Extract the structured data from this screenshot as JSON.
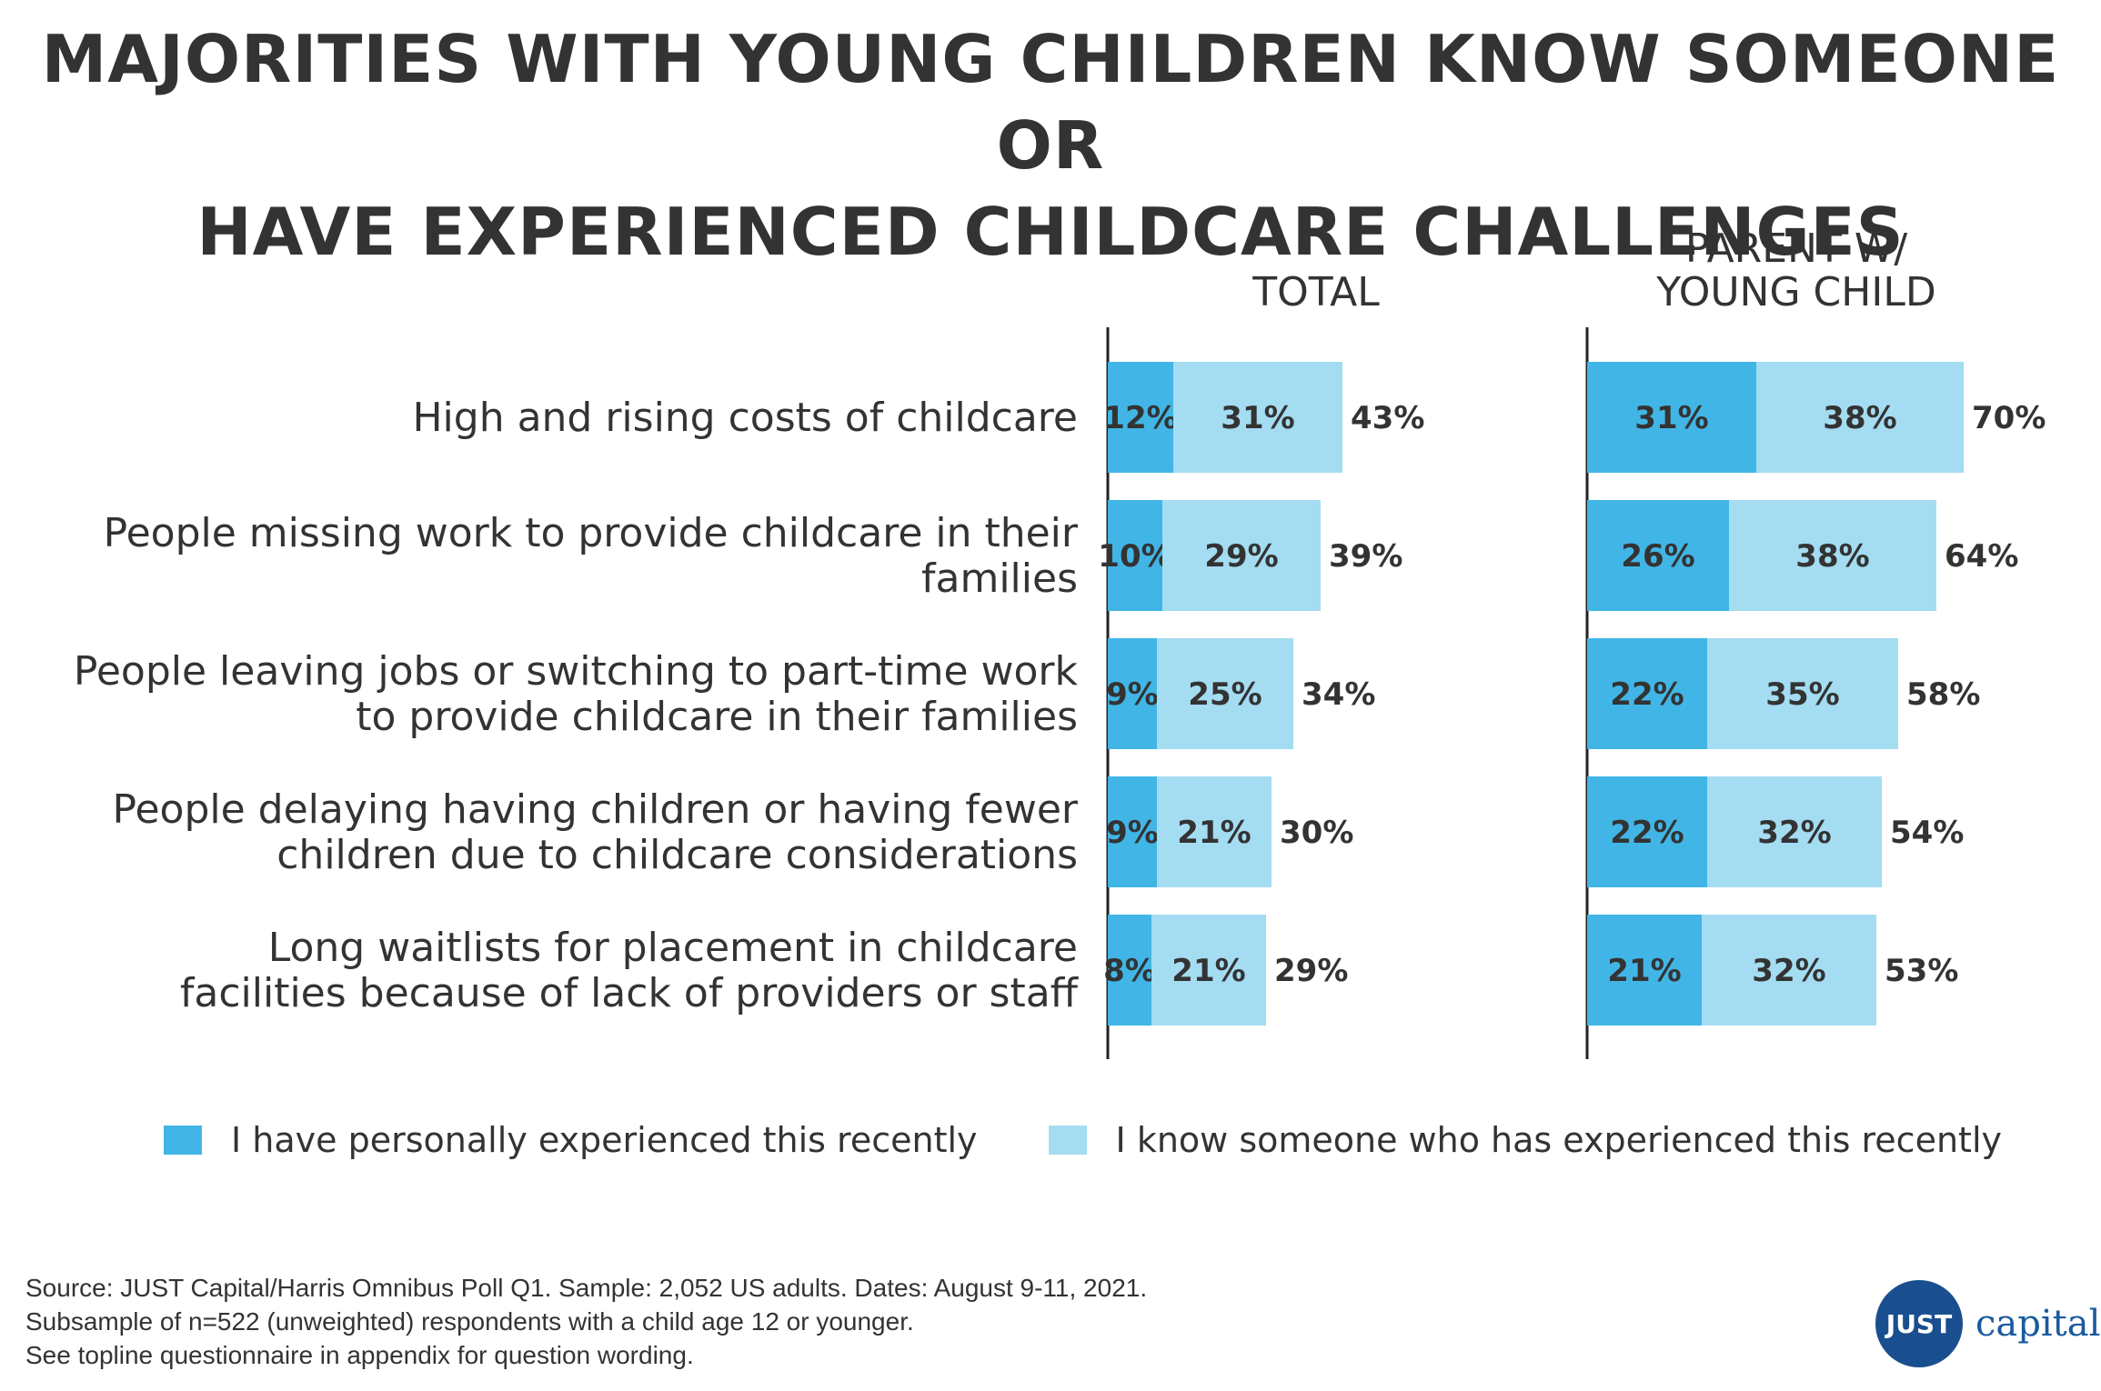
{
  "title": {
    "line1": "MAJORITIES WITH YOUNG CHILDREN KNOW SOMEONE OR",
    "line2": "HAVE EXPERIENCED CHILDCARE CHALLENGES"
  },
  "colors": {
    "personal": "#41b6e6",
    "know_someone": "#a4dcf2",
    "text": "#333333",
    "axis": "#222222",
    "logo": "#1a4f8f"
  },
  "chart_data": [
    {
      "type": "bar",
      "orientation": "horizontal",
      "stacked": true,
      "title": [
        "TOTAL"
      ],
      "categories": [
        [
          "High and rising costs of childcare"
        ],
        [
          "People missing work to provide childcare in their",
          "families"
        ],
        [
          "People leaving jobs or switching to part-time work",
          "to provide childcare in their families"
        ],
        [
          "People delaying having children or having fewer",
          "children due to childcare considerations"
        ],
        [
          "Long waitlists for placement in childcare",
          "facilities because of lack of providers or staff"
        ]
      ],
      "series": [
        {
          "name": "I have personally experienced this recently",
          "values": [
            12,
            10,
            9,
            9,
            8
          ],
          "labels": [
            "12%",
            "10%",
            "9%",
            "9%",
            "8%"
          ]
        },
        {
          "name": "I know someone who has experienced this recently",
          "values": [
            31,
            29,
            25,
            21,
            21
          ],
          "labels": [
            "31%",
            "29%",
            "25%",
            "21%",
            "21%"
          ]
        }
      ],
      "totals": [
        43,
        39,
        34,
        30,
        29
      ],
      "total_labels": [
        "43%",
        "39%",
        "34%",
        "30%",
        "29%"
      ],
      "xlim": [
        0,
        100
      ]
    },
    {
      "type": "bar",
      "orientation": "horizontal",
      "stacked": true,
      "title": [
        "PARENT W/",
        "YOUNG CHILD"
      ],
      "categories": [
        [
          "High and rising costs of childcare"
        ],
        [
          "People missing work to provide childcare in their",
          "families"
        ],
        [
          "People leaving jobs or switching to part-time work",
          "to provide childcare in their families"
        ],
        [
          "People delaying having children or having fewer",
          "children due to childcare considerations"
        ],
        [
          "Long waitlists for placement in childcare",
          "facilities because of lack of providers or staff"
        ]
      ],
      "series": [
        {
          "name": "I have personally experienced this recently",
          "values": [
            31,
            26,
            22,
            22,
            21
          ],
          "labels": [
            "31%",
            "26%",
            "22%",
            "22%",
            "21%"
          ]
        },
        {
          "name": "I know someone who has experienced this recently",
          "values": [
            38,
            38,
            35,
            32,
            32
          ],
          "labels": [
            "38%",
            "38%",
            "35%",
            "32%",
            "32%"
          ]
        }
      ],
      "totals": [
        70,
        64,
        58,
        54,
        53
      ],
      "total_labels": [
        "70%",
        "64%",
        "58%",
        "54%",
        "53%"
      ],
      "xlim": [
        0,
        100
      ]
    }
  ],
  "legend": {
    "personal": "I have personally experienced this recently",
    "know_someone": "I know someone who has experienced this recently"
  },
  "source": {
    "line1": "Source: JUST Capital/Harris Omnibus Poll Q1. Sample: 2,052 US adults. Dates: August 9-11, 2021.",
    "line2": "Subsample of n=522 (unweighted) respondents with a child age 12 or younger.",
    "line3": "See topline questionnaire in appendix for question wording."
  },
  "logo": {
    "badge": "JUST",
    "word": "capital"
  }
}
